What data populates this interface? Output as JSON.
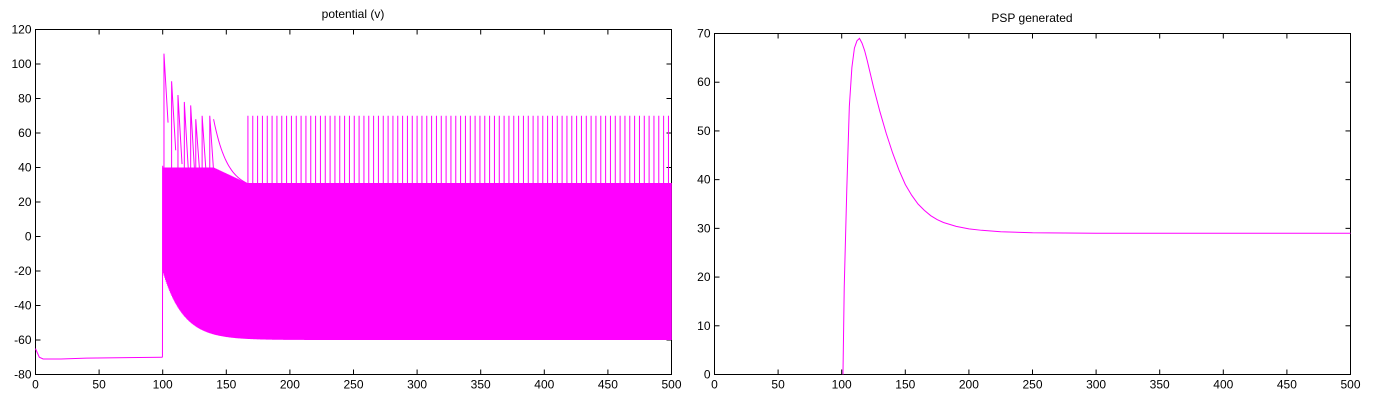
{
  "colors": {
    "series": "#ff00ff",
    "axes": "#000000",
    "background": "#ffffff"
  },
  "chart_data": [
    {
      "id": "potential",
      "type": "line",
      "title": "potential (v)",
      "xlabel": "",
      "ylabel": "",
      "xlim": [
        0,
        500
      ],
      "ylim": [
        -80,
        120
      ],
      "xticks": [
        "0",
        "50",
        "100",
        "150",
        "200",
        "250",
        "300",
        "350",
        "400",
        "450",
        "500"
      ],
      "yticks": [
        "-80",
        "-60",
        "-40",
        "-20",
        "0",
        "20",
        "40",
        "60",
        "80",
        "100",
        "120"
      ],
      "grid": false,
      "legend": "none",
      "series": [
        {
          "description_points": [
            [
              0,
              -65
            ],
            [
              3,
              -70
            ],
            [
              6,
              -71
            ],
            [
              20,
              -71
            ],
            [
              40,
              -70.5
            ],
            [
              99.8,
              -70
            ],
            [
              100,
              41
            ],
            [
              100.3,
              -20
            ],
            [
              101,
              106
            ],
            [
              101.6,
              -22
            ],
            [
              103,
              -30
            ],
            [
              107,
              90
            ],
            [
              112,
              82
            ],
            [
              117,
              78
            ],
            [
              122,
              76
            ],
            [
              126,
              68
            ],
            [
              131,
              70
            ],
            [
              137,
              70
            ],
            [
              140,
              68
            ],
            [
              150,
              52
            ],
            [
              160,
              38
            ],
            [
              166,
              31
            ],
            [
              500,
              31
            ]
          ],
          "envelope": {
            "regular_spike_peak": 70,
            "regular_spike_start_x": 167,
            "regular_spike_interval": 3.8,
            "plateau": 31,
            "decay_floor": -60,
            "decay_start": -20,
            "decay_tau": 16,
            "burst_start_x": 100
          }
        }
      ]
    },
    {
      "id": "psp",
      "type": "line",
      "title": "PSP generated",
      "xlabel": "",
      "ylabel": "",
      "xlim": [
        0,
        500
      ],
      "ylim": [
        0,
        70
      ],
      "xticks": [
        "0",
        "50",
        "100",
        "150",
        "200",
        "250",
        "300",
        "350",
        "400",
        "450",
        "500"
      ],
      "yticks": [
        "0",
        "10",
        "20",
        "30",
        "40",
        "50",
        "60",
        "70"
      ],
      "grid": false,
      "legend": "none",
      "series": [
        {
          "x": [
            101,
            102,
            104,
            106,
            108,
            110,
            112,
            114,
            116,
            118,
            120,
            125,
            130,
            135,
            140,
            145,
            150,
            155,
            160,
            165,
            170,
            175,
            180,
            190,
            200,
            210,
            225,
            250,
            300,
            350,
            400,
            450,
            500
          ],
          "y": [
            0,
            18,
            38,
            55,
            63,
            67,
            68.5,
            69,
            68,
            66.5,
            64.5,
            59,
            54,
            49.5,
            45.5,
            42,
            39,
            36.8,
            35,
            33.7,
            32.6,
            31.8,
            31.2,
            30.4,
            29.9,
            29.6,
            29.3,
            29.1,
            29,
            29,
            29,
            29,
            29
          ]
        }
      ]
    }
  ]
}
